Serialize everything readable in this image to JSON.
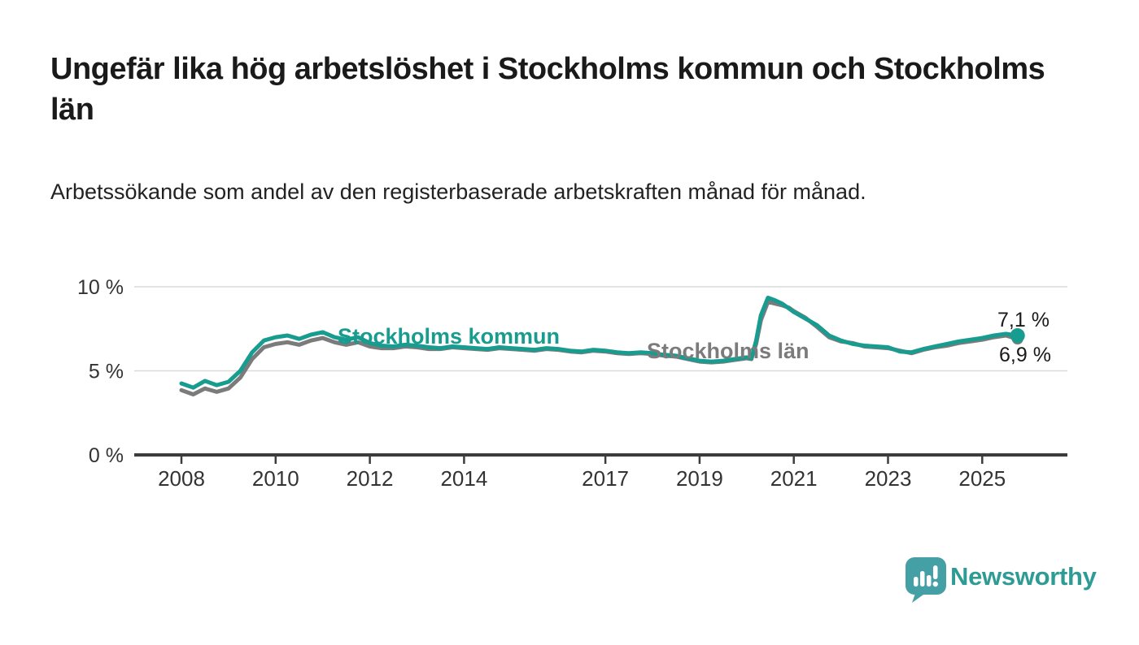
{
  "header": {
    "title": "Ungefär lika hög arbetslöshet i Stockholms kommun och Stockholms län",
    "subtitle": "Arbetssökande som andel av den registerbaserade arbetskraften månad för månad."
  },
  "chart_data": {
    "type": "line",
    "title": "Ungefär lika hög arbetslöshet i Stockholms kommun och Stockholms län",
    "xlabel": "",
    "ylabel": "Arbetssökande som andel av den registerbaserade arbetskraften",
    "grid": "horizontal-gridlines-at-5-and-10",
    "legend_position": "inline-labels-on-lines",
    "ylim": [
      0,
      10.5
    ],
    "xlim": [
      2007,
      2026.5
    ],
    "yticks": [
      {
        "value": 0,
        "label": "0 %"
      },
      {
        "value": 5,
        "label": "5 %"
      },
      {
        "value": 10,
        "label": "10 %"
      }
    ],
    "xticks": [
      {
        "value": 2008,
        "label": "2008"
      },
      {
        "value": 2010,
        "label": "2010"
      },
      {
        "value": 2012,
        "label": "2012"
      },
      {
        "value": 2014,
        "label": "2014"
      },
      {
        "value": 2017,
        "label": "2017"
      },
      {
        "value": 2019,
        "label": "2019"
      },
      {
        "value": 2021,
        "label": "2021"
      },
      {
        "value": 2023,
        "label": "2023"
      },
      {
        "value": 2025,
        "label": "2025"
      }
    ],
    "x": [
      2008.0,
      2008.25,
      2008.5,
      2008.75,
      2009.0,
      2009.25,
      2009.5,
      2009.75,
      2010.0,
      2010.25,
      2010.5,
      2010.75,
      2011.0,
      2011.25,
      2011.5,
      2011.75,
      2012.0,
      2012.25,
      2012.5,
      2012.75,
      2013.0,
      2013.25,
      2013.5,
      2013.75,
      2014.0,
      2014.25,
      2014.5,
      2014.75,
      2015.0,
      2015.25,
      2015.5,
      2015.75,
      2016.0,
      2016.25,
      2016.5,
      2016.75,
      2017.0,
      2017.25,
      2017.5,
      2017.75,
      2018.0,
      2018.25,
      2018.5,
      2018.75,
      2019.0,
      2019.25,
      2019.5,
      2019.75,
      2020.0,
      2020.1,
      2020.2,
      2020.3,
      2020.45,
      2020.6,
      2020.75,
      2020.9,
      2021.0,
      2021.25,
      2021.5,
      2021.75,
      2022.0,
      2022.25,
      2022.5,
      2022.75,
      2023.0,
      2023.25,
      2023.5,
      2023.75,
      2024.0,
      2024.25,
      2024.5,
      2024.75,
      2025.0,
      2025.25,
      2025.5,
      2025.75
    ],
    "series": [
      {
        "name": "Stockholms kommun",
        "color": "#189C8F",
        "end_label": "7,1 %",
        "end_value": 7.1,
        "values": [
          4.25,
          4.0,
          4.4,
          4.15,
          4.35,
          5.0,
          6.1,
          6.8,
          7.0,
          7.1,
          6.9,
          7.15,
          7.3,
          7.0,
          6.85,
          7.0,
          6.65,
          6.5,
          6.45,
          6.55,
          6.5,
          6.4,
          6.35,
          6.45,
          6.4,
          6.35,
          6.3,
          6.4,
          6.35,
          6.3,
          6.25,
          6.35,
          6.3,
          6.2,
          6.15,
          6.25,
          6.2,
          6.1,
          6.05,
          6.1,
          6.05,
          5.95,
          5.9,
          5.75,
          5.6,
          5.55,
          5.6,
          5.7,
          5.8,
          5.75,
          6.8,
          8.3,
          9.35,
          9.2,
          9.0,
          8.7,
          8.5,
          8.1,
          7.7,
          7.1,
          6.8,
          6.6,
          6.5,
          6.45,
          6.4,
          6.15,
          6.1,
          6.3,
          6.45,
          6.6,
          6.75,
          6.85,
          6.95,
          7.1,
          7.2,
          7.1
        ]
      },
      {
        "name": "Stockholms län",
        "color": "#7B7B7B",
        "end_label": "6,9 %",
        "end_value": 6.9,
        "values": [
          3.85,
          3.6,
          3.95,
          3.75,
          3.95,
          4.6,
          5.7,
          6.4,
          6.6,
          6.7,
          6.55,
          6.8,
          6.95,
          6.7,
          6.55,
          6.7,
          6.45,
          6.35,
          6.35,
          6.45,
          6.4,
          6.3,
          6.3,
          6.4,
          6.35,
          6.3,
          6.25,
          6.35,
          6.3,
          6.25,
          6.2,
          6.3,
          6.25,
          6.15,
          6.1,
          6.2,
          6.15,
          6.05,
          6.0,
          6.05,
          6.0,
          5.9,
          5.85,
          5.7,
          5.55,
          5.5,
          5.55,
          5.65,
          5.75,
          5.7,
          6.6,
          8.0,
          9.1,
          9.0,
          8.9,
          8.75,
          8.55,
          8.15,
          7.6,
          7.0,
          6.75,
          6.65,
          6.45,
          6.4,
          6.35,
          6.2,
          6.05,
          6.25,
          6.4,
          6.5,
          6.65,
          6.75,
          6.85,
          7.0,
          7.1,
          6.9
        ]
      }
    ],
    "colors": {
      "grid": "#DADADA",
      "axis": "#3C3C3C",
      "tick_text": "#333333"
    }
  },
  "footer": {
    "brand": "Newsworthy",
    "brand_color": "#2E9C94",
    "logo_color": "#45A0A6"
  }
}
